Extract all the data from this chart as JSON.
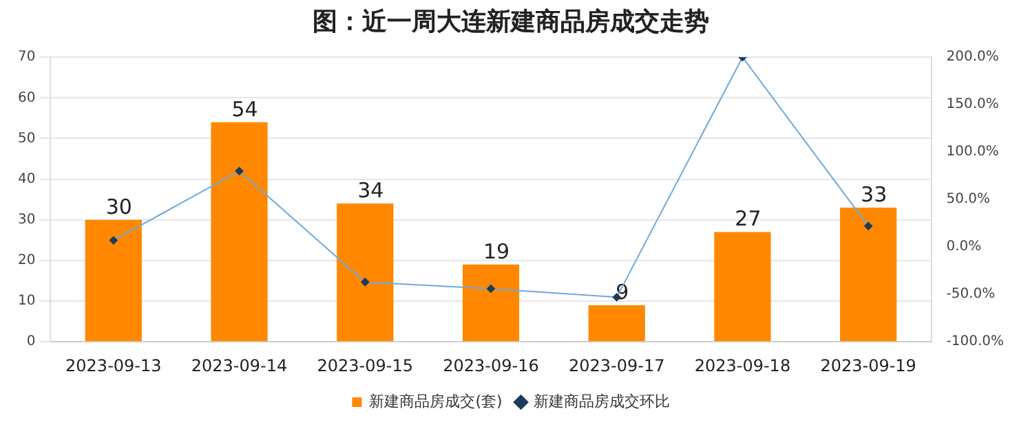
{
  "chart_data": {
    "type": "bar",
    "title": "图：近一周大连新建商品房成交走势",
    "categories": [
      "2023-09-13",
      "2023-09-14",
      "2023-09-15",
      "2023-09-16",
      "2023-09-17",
      "2023-09-18",
      "2023-09-19"
    ],
    "series": [
      {
        "name": "新建商品房成交(套)",
        "color": "#ff8800",
        "values": [
          30,
          54,
          34,
          19,
          9,
          27,
          33
        ],
        "value_labels": [
          "30",
          "54",
          "34",
          "19",
          "9",
          "27",
          "33"
        ]
      },
      {
        "name": "新建商品房成交环比",
        "type": "line",
        "axis": "y2",
        "color": "#6fa8dc",
        "marker": "diamond",
        "values": [
          7,
          80,
          -37,
          -44,
          -53,
          200,
          22
        ]
      }
    ],
    "ylim": [
      0,
      70
    ],
    "yticks": [
      0,
      10,
      20,
      30,
      40,
      50,
      60,
      70
    ],
    "y2lim": [
      -100,
      200
    ],
    "y2ticks": [
      {
        "value": -100,
        "label": "-100.0%"
      },
      {
        "value": -50,
        "label": "-50.0%"
      },
      {
        "value": 0,
        "label": "0.0%"
      },
      {
        "value": 50,
        "label": "50.0%"
      },
      {
        "value": 100,
        "label": "100.0%"
      },
      {
        "value": 150,
        "label": "150.0%"
      },
      {
        "value": 200,
        "label": "200.0%"
      }
    ],
    "grid": "y",
    "legend": "bottom"
  }
}
